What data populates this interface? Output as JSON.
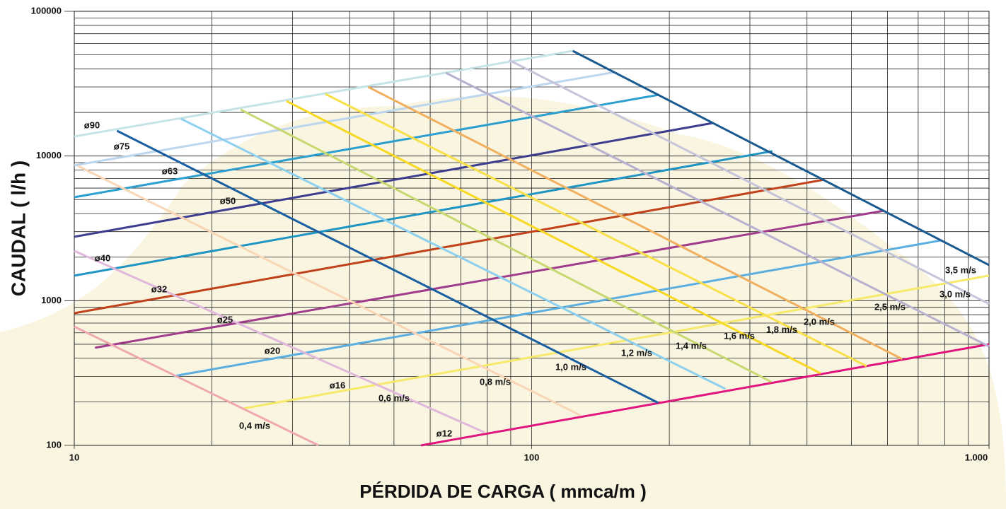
{
  "chart_data": {
    "type": "line",
    "xlabel": "PÉRDIDA DE CARGA ( mmca/m )",
    "ylabel": "CAUDAL ( l/h )",
    "xscale": "log",
    "yscale": "log",
    "grid": true,
    "xlim": [
      10,
      1000
    ],
    "ylim": [
      100,
      100000
    ],
    "xticks": [
      10,
      100,
      {
        "value": 1000,
        "label": "1.000"
      }
    ],
    "yticks": [
      100,
      1000,
      10000,
      100000
    ],
    "xminorticks": [
      20,
      30,
      40,
      50,
      60,
      70,
      80,
      90,
      200,
      300,
      400,
      500,
      600,
      700,
      800,
      900
    ],
    "yminorticks": [
      200,
      300,
      400,
      500,
      600,
      700,
      800,
      900,
      2000,
      3000,
      4000,
      5000,
      6000,
      7000,
      8000,
      9000,
      20000,
      30000,
      40000,
      50000,
      60000,
      70000,
      80000,
      90000
    ],
    "series": [
      {
        "name": "ø90",
        "color": "#c6e4e6",
        "x": [
          10,
          123
        ],
        "values": [
          13650,
          53250
        ]
      },
      {
        "name": "ø75",
        "color": "#bcd6ee",
        "x": [
          10,
          152
        ],
        "values": [
          8610,
          38000
        ]
      },
      {
        "name": "ø63",
        "color": "#2a9fd0",
        "x": [
          10,
          190
        ],
        "values": [
          5190,
          26500
        ]
      },
      {
        "name": "ø50",
        "color": "#3d3d8f",
        "x": [
          10,
          249
        ],
        "values": [
          2765,
          16900
        ]
      },
      {
        "name": "ø40",
        "color": "#1f95c4",
        "x": [
          10,
          336
        ],
        "values": [
          1490,
          10800
        ]
      },
      {
        "name": "ø32",
        "color": "#c0411a",
        "x": [
          10,
          437
        ],
        "values": [
          820,
          6870
        ]
      },
      {
        "name": "ø25",
        "color": "#a03c8c",
        "x": [
          11.1,
          590
        ],
        "values": [
          473,
          4190
        ]
      },
      {
        "name": "ø20",
        "color": "#5aaee0",
        "x": [
          16.5,
          785
        ],
        "values": [
          301,
          2610
        ]
      },
      {
        "name": "ø16",
        "color": "#f7e96a",
        "x": [
          23.5,
          1000
        ],
        "values": [
          180,
          1490
        ]
      },
      {
        "name": "ø12",
        "color": "#e0157e",
        "x": [
          57.3,
          1000
        ],
        "values": [
          100,
          500
        ]
      },
      {
        "name": "0,4 m/s",
        "color": "#f0a8b0",
        "x": [
          10,
          34.2
        ],
        "values": [
          662,
          100
        ]
      },
      {
        "name": "0,6 m/s",
        "color": "#e0b8dc",
        "x": [
          10,
          78.9
        ],
        "values": [
          2208,
          123
        ]
      },
      {
        "name": "0,8 m/s",
        "color": "#fbd6b6",
        "x": [
          10.2,
          128
        ],
        "values": [
          8510,
          161
        ]
      },
      {
        "name": "1,0 m/s",
        "color": "#1a5fa0",
        "x": [
          12.4,
          189
        ],
        "values": [
          14940,
          197
        ]
      },
      {
        "name": "1,2 m/s",
        "color": "#8ed0f0",
        "x": [
          17.1,
          265
        ],
        "values": [
          18100,
          246
        ]
      },
      {
        "name": "1,4 m/s",
        "color": "#c8d870",
        "x": [
          23.1,
          334
        ],
        "values": [
          20940,
          275
        ]
      },
      {
        "name": "1,6 m/s",
        "color": "#f8d820",
        "x": [
          29.1,
          428
        ],
        "values": [
          23970,
          315
        ]
      },
      {
        "name": "1,8 m/s",
        "color": "#f8e048",
        "x": [
          35.4,
          540
        ],
        "values": [
          26810,
          353
        ]
      },
      {
        "name": "2,0 m/s",
        "color": "#f0b060",
        "x": [
          43.9,
          646
        ],
        "values": [
          30000,
          395
        ]
      },
      {
        "name": "2,5 m/s",
        "color": "#b8b0d0",
        "x": [
          64.9,
          1000
        ],
        "values": [
          37580,
          483
        ]
      },
      {
        "name": "3,0 m/s",
        "color": "#c4c4da",
        "x": [
          89.3,
          1000
        ],
        "values": [
          46000,
          950
        ]
      },
      {
        "name": "3,5 m/s",
        "color": "#1a5a90",
        "x": [
          123,
          1000
        ],
        "values": [
          53250,
          1763
        ]
      }
    ]
  }
}
